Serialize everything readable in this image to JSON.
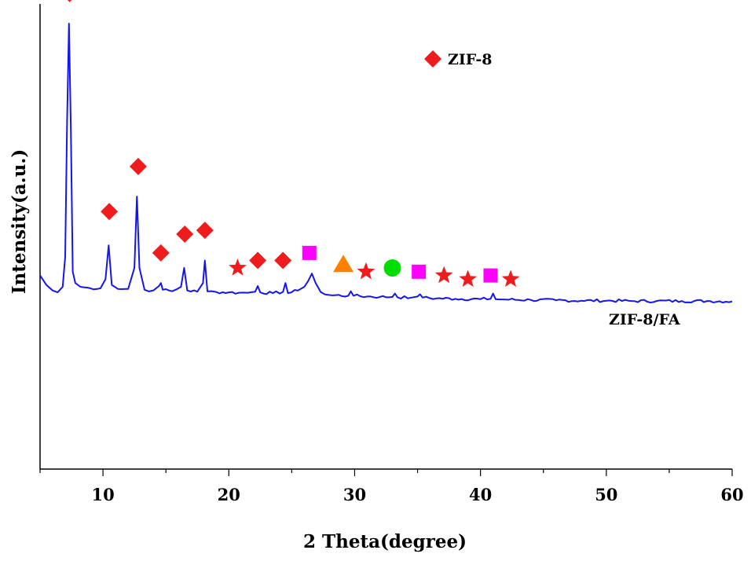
{
  "chart_data": {
    "type": "line",
    "title": "",
    "xlabel": "2 Theta(degree)",
    "ylabel": "Intensity(a.u.)",
    "xlim": [
      5,
      60
    ],
    "ylim": [
      0,
      100
    ],
    "xticks": [
      10,
      20,
      30,
      40,
      50,
      60
    ],
    "grid": false,
    "legend": {
      "entries": [
        {
          "marker": "diamond",
          "color": "#ee1c1c",
          "label": "ZIF-8"
        }
      ],
      "placement": "top-center"
    },
    "annotations": [
      {
        "text": "ZIF-8/FA",
        "placement": "right, above trace"
      }
    ],
    "series": [
      {
        "name": "ZIF-8/FA",
        "color": "#1515ee",
        "x": [
          5.0,
          5.5,
          6.0,
          6.4,
          6.8,
          7.0,
          7.15,
          7.3,
          7.45,
          7.6,
          7.8,
          8.2,
          9.0,
          9.8,
          10.2,
          10.45,
          10.7,
          11.2,
          12.0,
          12.5,
          12.7,
          12.9,
          13.3,
          14.0,
          14.45,
          14.6,
          14.75,
          15.5,
          16.2,
          16.45,
          16.7,
          17.5,
          17.95,
          18.1,
          18.3,
          19.0,
          20.0,
          20.8,
          21.5,
          22.1,
          22.3,
          22.5,
          23.5,
          24.3,
          24.5,
          24.7,
          25.5,
          26.0,
          26.3,
          26.6,
          26.9,
          27.3,
          28.0,
          29.5,
          29.7,
          29.9,
          31.0,
          32.0,
          33.0,
          33.2,
          33.4,
          34.5,
          35.0,
          35.2,
          35.4,
          36.5,
          38.0,
          40.0,
          40.8,
          41.0,
          41.2,
          42.0,
          44.0,
          46.0,
          48.0,
          50.0,
          52.0,
          54.0,
          56.0,
          58.0,
          60.0
        ],
        "y": [
          33.0,
          30.5,
          29.0,
          28.5,
          30.0,
          38.0,
          74.0,
          100.0,
          72.0,
          34.0,
          31.0,
          30.0,
          29.6,
          29.6,
          32.0,
          41.0,
          30.5,
          29.4,
          29.4,
          35.0,
          54.0,
          35.0,
          29.2,
          29.0,
          30.2,
          31.0,
          29.2,
          28.8,
          30.0,
          35.0,
          29.0,
          28.7,
          31.0,
          37.0,
          28.8,
          28.6,
          28.5,
          28.4,
          28.4,
          28.7,
          30.2,
          28.5,
          28.3,
          28.6,
          31.0,
          28.3,
          29.0,
          30.0,
          31.5,
          33.5,
          31.0,
          28.6,
          27.8,
          27.6,
          28.8,
          27.6,
          27.4,
          27.3,
          27.3,
          28.2,
          27.2,
          27.1,
          27.4,
          28.0,
          27.1,
          26.9,
          26.8,
          26.7,
          26.8,
          28.2,
          26.7,
          26.6,
          26.5,
          26.4,
          26.3,
          26.3,
          26.2,
          26.2,
          26.2,
          26.2,
          26.1
        ]
      }
    ],
    "phase_markers": [
      {
        "shape": "diamond",
        "color": "#ee1c1c",
        "x": 7.35,
        "y": 108
      },
      {
        "shape": "diamond",
        "color": "#ee1c1c",
        "x": 10.5,
        "y": 50
      },
      {
        "shape": "diamond",
        "color": "#ee1c1c",
        "x": 12.8,
        "y": 62
      },
      {
        "shape": "diamond",
        "color": "#ee1c1c",
        "x": 14.6,
        "y": 39
      },
      {
        "shape": "diamond",
        "color": "#ee1c1c",
        "x": 16.5,
        "y": 44
      },
      {
        "shape": "diamond",
        "color": "#ee1c1c",
        "x": 18.1,
        "y": 45
      },
      {
        "shape": "star",
        "color": "#ee1c1c",
        "x": 20.7,
        "y": 35
      },
      {
        "shape": "diamond",
        "color": "#ee1c1c",
        "x": 22.3,
        "y": 37
      },
      {
        "shape": "diamond",
        "color": "#ee1c1c",
        "x": 24.3,
        "y": 37
      },
      {
        "shape": "square",
        "color": "#ff00ff",
        "x": 26.4,
        "y": 39
      },
      {
        "shape": "triangle",
        "color": "#ff8000",
        "x": 29.1,
        "y": 36
      },
      {
        "shape": "star",
        "color": "#ee1c1c",
        "x": 30.9,
        "y": 34
      },
      {
        "shape": "circle",
        "color": "#00dd00",
        "x": 33.0,
        "y": 35
      },
      {
        "shape": "square",
        "color": "#ff00ff",
        "x": 35.1,
        "y": 34
      },
      {
        "shape": "star",
        "color": "#ee1c1c",
        "x": 37.1,
        "y": 33
      },
      {
        "shape": "star",
        "color": "#ee1c1c",
        "x": 39.0,
        "y": 32
      },
      {
        "shape": "square",
        "color": "#ff00ff",
        "x": 40.8,
        "y": 33
      },
      {
        "shape": "star",
        "color": "#ee1c1c",
        "x": 42.4,
        "y": 32
      }
    ]
  }
}
